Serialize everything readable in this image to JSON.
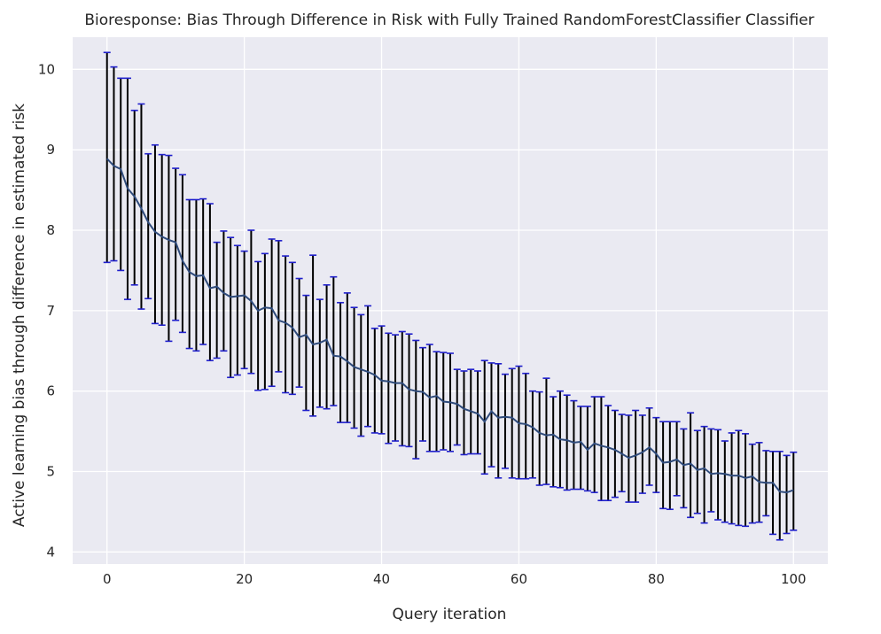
{
  "chart_data": {
    "type": "line",
    "title": "Bioresponse: Bias Through Difference in Risk with Fully Trained RandomForestClassifier Classifier",
    "xlabel": "Query iteration",
    "ylabel": "Active learning bias through difference in estimated risk",
    "xlim": [
      -5,
      105
    ],
    "ylim": [
      3.85,
      10.4
    ],
    "xticks": [
      0,
      20,
      40,
      60,
      80,
      100
    ],
    "yticks": [
      4,
      5,
      6,
      7,
      8,
      9,
      10
    ],
    "grid": true,
    "colors": {
      "background": "#EAEAF2",
      "grid": "#FFFFFF",
      "line": "#2F4B7C",
      "errorbar": "#000000",
      "cap": "#1F1FCC"
    },
    "series": [
      {
        "x": [
          0,
          1,
          2,
          3,
          4,
          5,
          6,
          7,
          8,
          9,
          10,
          11,
          12,
          13,
          14,
          15,
          16,
          17,
          18,
          19,
          20,
          21,
          22,
          23,
          24,
          25,
          26,
          27,
          28,
          29,
          30,
          31,
          32,
          33,
          34,
          35,
          36,
          37,
          38,
          39,
          40,
          41,
          42,
          43,
          44,
          45,
          46,
          47,
          48,
          49,
          50,
          51,
          52,
          53,
          54,
          55,
          56,
          57,
          58,
          59,
          60,
          61,
          62,
          63,
          64,
          65,
          66,
          67,
          68,
          69,
          70,
          71,
          72,
          73,
          74,
          75,
          76,
          77,
          78,
          79,
          80,
          81,
          82,
          83,
          84,
          85,
          86,
          87,
          88,
          89,
          90,
          91,
          92,
          93,
          94,
          95,
          96,
          97,
          98,
          99,
          100
        ],
        "y": [
          8.89,
          8.8,
          8.76,
          8.52,
          8.42,
          8.27,
          8.1,
          7.98,
          7.92,
          7.88,
          7.85,
          7.62,
          7.48,
          7.43,
          7.44,
          7.28,
          7.3,
          7.22,
          7.17,
          7.18,
          7.19,
          7.12,
          7.0,
          7.04,
          7.03,
          6.88,
          6.85,
          6.79,
          6.67,
          6.7,
          6.58,
          6.6,
          6.64,
          6.44,
          6.43,
          6.37,
          6.3,
          6.27,
          6.24,
          6.2,
          6.13,
          6.12,
          6.1,
          6.1,
          6.02,
          6.0,
          5.99,
          5.92,
          5.94,
          5.87,
          5.86,
          5.84,
          5.78,
          5.75,
          5.72,
          5.62,
          5.75,
          5.67,
          5.68,
          5.67,
          5.6,
          5.59,
          5.55,
          5.48,
          5.45,
          5.46,
          5.4,
          5.39,
          5.36,
          5.37,
          5.27,
          5.35,
          5.32,
          5.3,
          5.27,
          5.22,
          5.17,
          5.2,
          5.24,
          5.3,
          5.22,
          5.11,
          5.12,
          5.15,
          5.08,
          5.1,
          5.02,
          5.04,
          4.97,
          4.98,
          4.97,
          4.95,
          4.95,
          4.92,
          4.94,
          4.87,
          4.86,
          4.86,
          4.75,
          4.74,
          4.77
        ],
        "yerr_low": [
          7.6,
          7.62,
          7.5,
          7.14,
          7.32,
          7.02,
          7.15,
          6.84,
          6.82,
          6.62,
          6.88,
          6.73,
          6.53,
          6.5,
          6.58,
          6.38,
          6.41,
          6.5,
          6.17,
          6.2,
          6.28,
          6.22,
          6.01,
          6.02,
          6.06,
          6.24,
          5.98,
          5.96,
          6.05,
          5.76,
          5.69,
          5.8,
          5.78,
          5.82,
          5.61,
          5.61,
          5.54,
          5.44,
          5.56,
          5.48,
          5.47,
          5.35,
          5.38,
          5.32,
          5.31,
          5.16,
          5.38,
          5.25,
          5.25,
          5.27,
          5.25,
          5.33,
          5.21,
          5.22,
          5.22,
          4.97,
          5.06,
          4.92,
          5.04,
          4.92,
          4.91,
          4.91,
          4.92,
          4.83,
          4.84,
          4.81,
          4.8,
          4.77,
          4.78,
          4.78,
          4.76,
          4.74,
          4.64,
          4.64,
          4.68,
          4.75,
          4.62,
          4.62,
          4.73,
          4.83,
          4.74,
          4.54,
          4.53,
          4.7,
          4.55,
          4.43,
          4.48,
          4.36,
          4.5,
          4.4,
          4.37,
          4.35,
          4.33,
          4.32,
          4.36,
          4.37,
          4.45,
          4.22,
          4.15,
          4.23,
          4.27
        ],
        "yerr_high": [
          10.21,
          10.03,
          9.89,
          9.89,
          9.49,
          9.57,
          8.95,
          9.06,
          8.94,
          8.93,
          8.77,
          8.69,
          8.38,
          8.38,
          8.39,
          8.33,
          7.85,
          7.99,
          7.91,
          7.81,
          7.74,
          8.0,
          7.61,
          7.71,
          7.89,
          7.87,
          7.68,
          7.6,
          7.4,
          7.19,
          7.69,
          7.14,
          7.32,
          7.42,
          7.1,
          7.22,
          7.04,
          6.95,
          7.06,
          6.78,
          6.81,
          6.72,
          6.7,
          6.74,
          6.71,
          6.63,
          6.54,
          6.58,
          6.49,
          6.48,
          6.47,
          6.27,
          6.25,
          6.27,
          6.25,
          6.38,
          6.35,
          6.34,
          6.21,
          6.28,
          6.31,
          6.22,
          6.0,
          5.99,
          6.16,
          5.93,
          6.0,
          5.95,
          5.88,
          5.81,
          5.81,
          5.93,
          5.93,
          5.82,
          5.76,
          5.71,
          5.7,
          5.76,
          5.7,
          5.79,
          5.67,
          5.62,
          5.62,
          5.62,
          5.53,
          5.73,
          5.51,
          5.56,
          5.53,
          5.52,
          5.38,
          5.48,
          5.51,
          5.47,
          5.34,
          5.36,
          5.26,
          5.25,
          5.25,
          5.2,
          5.24
        ]
      }
    ]
  }
}
